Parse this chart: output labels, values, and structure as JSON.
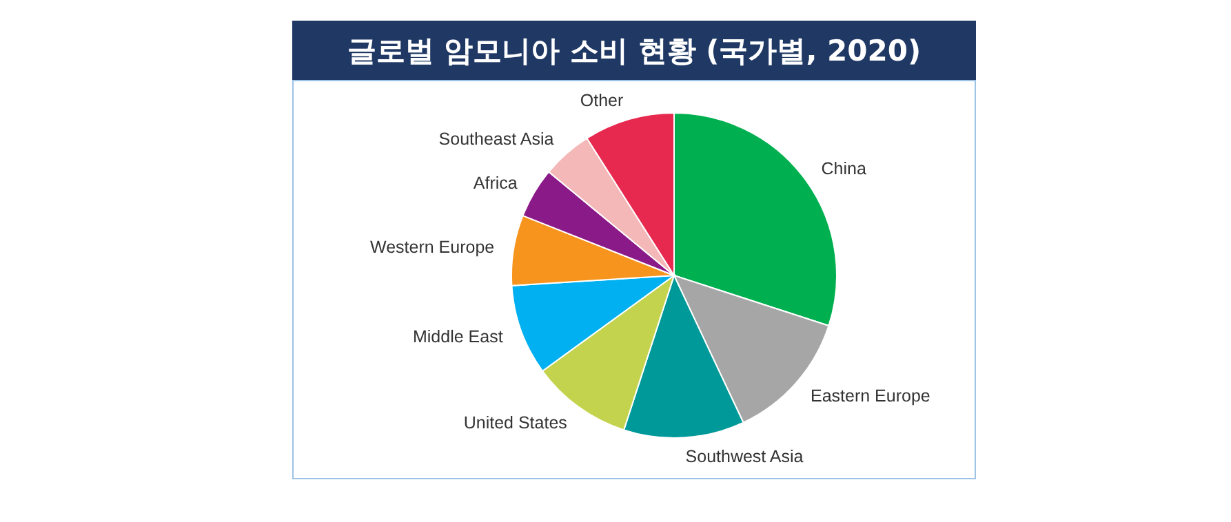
{
  "chart_data": {
    "type": "pie",
    "title": "글로벌 암모니아 소비 현황 (국가별, 2020)",
    "categories": [
      "China",
      "Eastern Europe",
      "Southwest Asia",
      "United States",
      "Middle East",
      "Western Europe",
      "Africa",
      "Southeast Asia",
      "Other"
    ],
    "values": [
      30,
      13,
      12,
      10,
      9,
      7,
      5,
      5,
      9
    ],
    "colors": [
      "#00b050",
      "#a6a6a6",
      "#009999",
      "#c4d34d",
      "#00b0f0",
      "#f7941d",
      "#8b1a89",
      "#f4b8b8",
      "#e8294f"
    ]
  }
}
